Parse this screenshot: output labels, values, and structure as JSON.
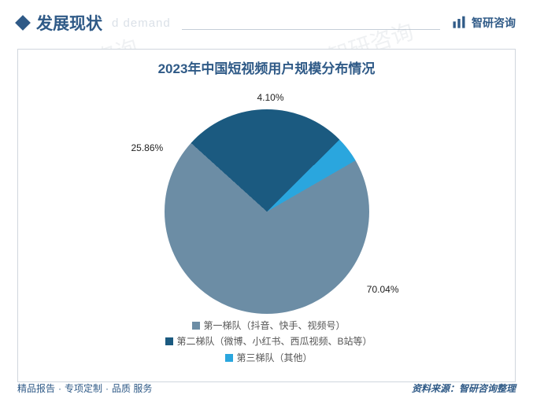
{
  "header": {
    "title": "发展现状",
    "subtitle": "d demand",
    "accent_color": "#2f5a87",
    "rule_color": "#c5ced8"
  },
  "brand": {
    "name": "智研咨询",
    "logo_color": "#2f5a87"
  },
  "chart": {
    "type": "pie",
    "title": "2023年中国短视频用户规模分布情况",
    "title_fontsize": 17,
    "title_color": "#2f5a87",
    "background_color": "#ffffff",
    "border_color": "#d0d6dd",
    "slices": [
      {
        "label": "第一梯队（抖音、快手、视频号）",
        "value": 70.04,
        "value_label": "70.04%",
        "color": "#6c8da5"
      },
      {
        "label": "第二梯队（微博、小红书、西瓜视频、B站等）",
        "value": 25.86,
        "value_label": "25.86%",
        "color": "#1b5a80"
      },
      {
        "label": "第三梯队（其他）",
        "value": 4.1,
        "value_label": "4.10%",
        "color": "#2aa6de"
      }
    ],
    "start_angle_deg": 60,
    "label_fontsize": 12,
    "label_color": "#222222",
    "legend_fontsize": 12,
    "legend_color": "#555555",
    "legend_marker": "square"
  },
  "footer": {
    "left_items": [
      "精品报告",
      "专项定制",
      "品质 服务"
    ],
    "left_separator": "·",
    "left_color": "#2f5a87",
    "right_text": "资料来源：智研咨询整理",
    "right_color": "#2f5a87"
  },
  "watermark": {
    "text_main": "智研咨询",
    "text_sub": "chyxx.com",
    "color": "rgba(180,190,200,0.22)"
  }
}
